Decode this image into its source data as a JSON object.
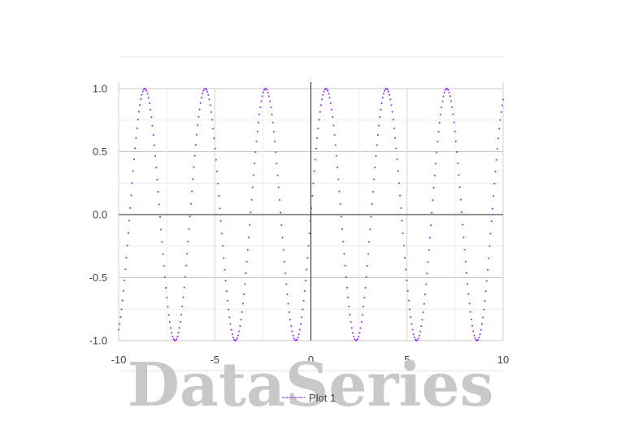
{
  "chart_data": {
    "type": "scatter",
    "title": "",
    "xlabel": "",
    "ylabel": "",
    "xlim": [
      -10,
      10
    ],
    "ylim": [
      -1,
      1
    ],
    "x_ticks": [
      -10,
      -5,
      0,
      5,
      10
    ],
    "x_tick_labels": [
      "-10",
      "-5",
      "0",
      "5",
      "10"
    ],
    "y_ticks": [
      -1.0,
      -0.5,
      0.0,
      0.5,
      1.0
    ],
    "y_tick_labels": [
      "-1.0",
      "-0.5",
      "0.0",
      "0.5",
      "1.0"
    ],
    "grid": true,
    "legend_position": "bottom",
    "series": [
      {
        "name": "Plot 1",
        "color": "#9b30e8",
        "function": "sin(2x)",
        "x_range": [
          -10,
          10
        ],
        "num_points": 400
      }
    ]
  },
  "watermark": "DataSeries"
}
